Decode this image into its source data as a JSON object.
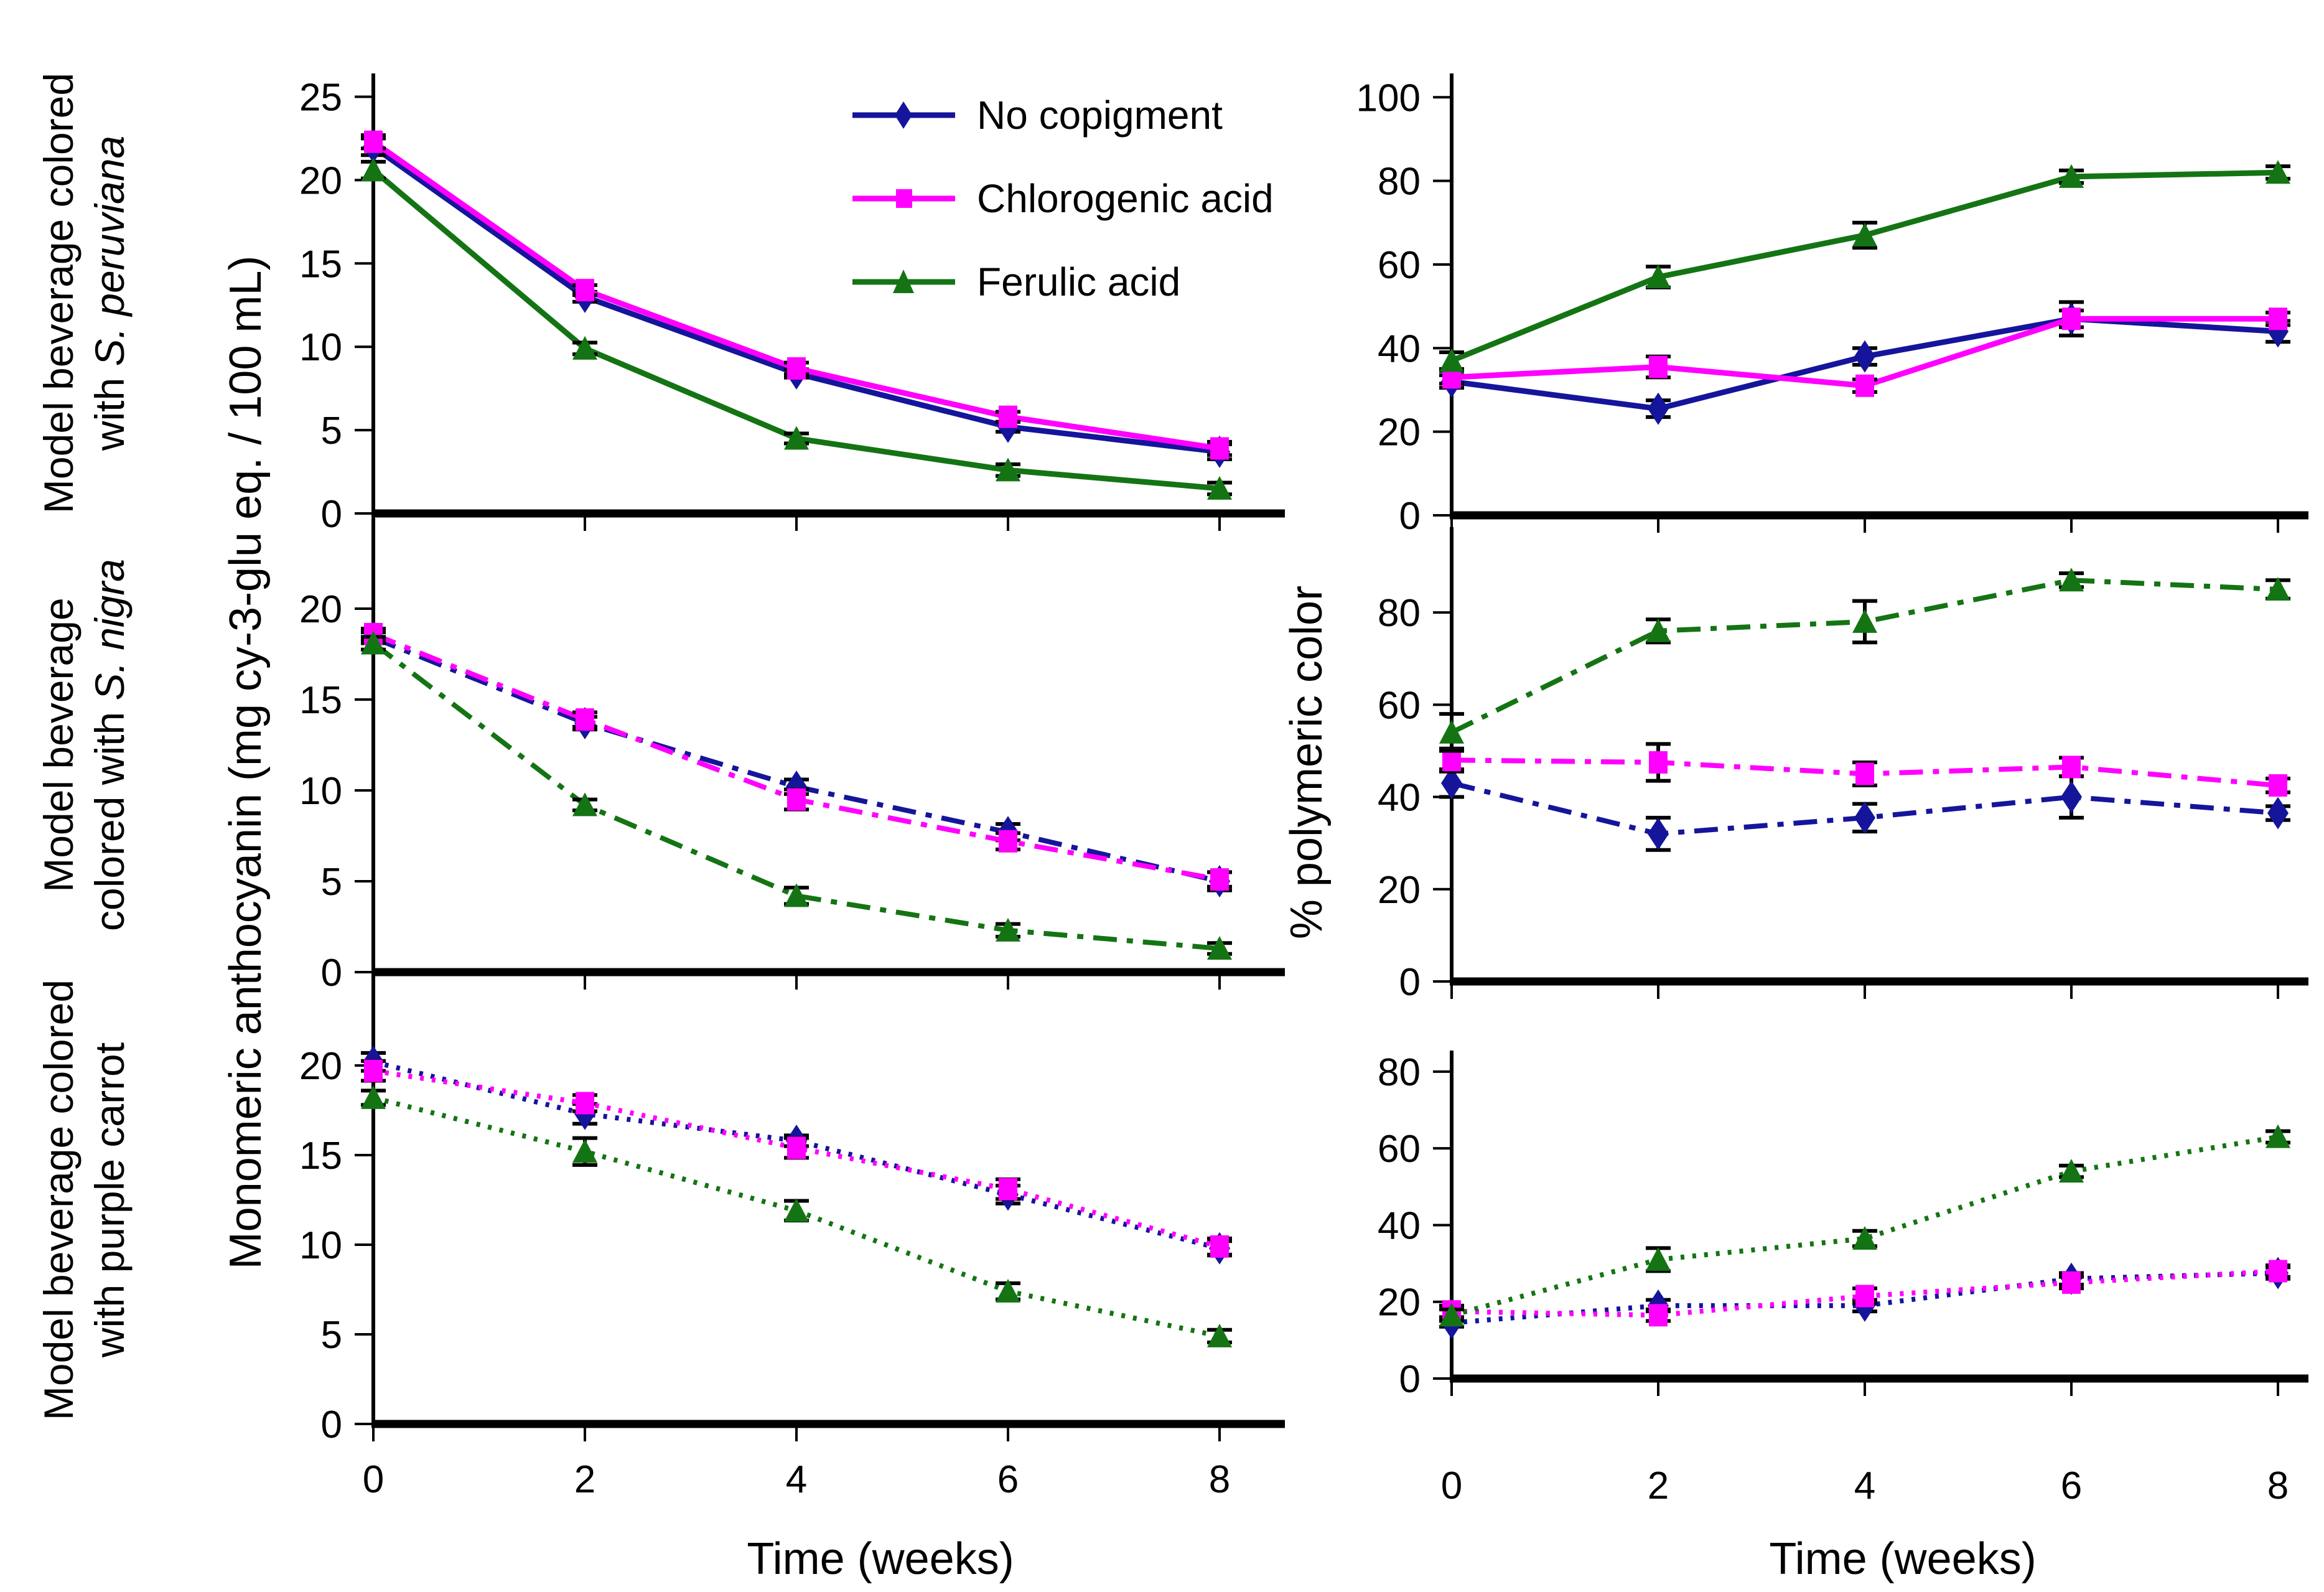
{
  "figure": {
    "row_labels": [
      {
        "line1": "Model beverage colored",
        "line2_normal": "with ",
        "line2_italic": "S. peruviana"
      },
      {
        "line1": "Model beverage",
        "line2_normal": "colored with ",
        "line2_italic": "S. nigra"
      },
      {
        "line1": "Model beverage colored",
        "line2_normal": "with purple carrot",
        "line2_italic": ""
      }
    ],
    "ylabel_left": "Monomeric anthocyanin (mg cy-3-glu eq. / 100 mL)",
    "ylabel_right": "% polymeric color",
    "xlabel_left": "Time (weeks)",
    "xlabel_right": "Time (weeks)",
    "legend": {
      "items": [
        "No copigment",
        "Chlorogenic acid",
        "Ferulic acid"
      ]
    }
  },
  "chart_data": {
    "type": "line",
    "x": [
      0,
      2,
      4,
      6,
      8
    ],
    "x_ticks": [
      0,
      2,
      4,
      6,
      8
    ],
    "xlabel": "Time (weeks)",
    "legend_position": "top-left panel, inside",
    "grid": false,
    "series_meta": [
      {
        "name": "No copigment",
        "color": "#15159B",
        "marker": "diamond"
      },
      {
        "name": "Chlorogenic acid",
        "color": "#FF00FF",
        "marker": "square"
      },
      {
        "name": "Ferulic acid",
        "color": "#147414",
        "marker": "triangle"
      }
    ],
    "panels": [
      {
        "id": "peruviana-monomeric",
        "col": "left",
        "row": 0,
        "linestyle": "solid",
        "ylabel": "Monomeric anthocyanin (mg cy-3-glu eq. / 100 mL)",
        "ylim": [
          0,
          26.4
        ],
        "yticks": [
          0,
          5,
          10,
          15,
          20,
          25
        ],
        "show_xticklabels": false,
        "series": [
          {
            "name": "No copigment",
            "values": [
              22.0,
              13.0,
              8.4,
              5.2,
              3.7
            ],
            "errors": [
              0.5,
              0.3,
              0.25,
              0.3,
              0.45
            ]
          },
          {
            "name": "Chlorogenic acid",
            "values": [
              22.3,
              13.4,
              8.7,
              5.8,
              3.9
            ],
            "errors": [
              0.4,
              0.3,
              0.35,
              0.3,
              0.4
            ]
          },
          {
            "name": "Ferulic acid",
            "values": [
              20.6,
              9.9,
              4.5,
              2.6,
              1.5
            ],
            "errors": [
              0.5,
              0.35,
              0.3,
              0.35,
              0.35
            ]
          }
        ]
      },
      {
        "id": "nigra-monomeric",
        "col": "left",
        "row": 1,
        "linestyle": "dashdot",
        "ylabel": "Monomeric anthocyanin (mg cy-3-glu eq. / 100 mL)",
        "ylim": [
          0,
          25
        ],
        "yticks": [
          0,
          5,
          10,
          15,
          20
        ],
        "show_xticklabels": false,
        "series": [
          {
            "name": "No copigment",
            "values": [
              18.4,
              13.7,
              10.2,
              7.7,
              5.0
            ],
            "errors": [
              0.3,
              0.35,
              0.4,
              0.45,
              0.5
            ]
          },
          {
            "name": "Chlorogenic acid",
            "values": [
              18.6,
              13.9,
              9.5,
              7.2,
              5.1
            ],
            "errors": [
              0.3,
              0.4,
              0.55,
              0.45,
              0.4
            ]
          },
          {
            "name": "Ferulic acid",
            "values": [
              18.1,
              9.2,
              4.2,
              2.3,
              1.3
            ],
            "errors": [
              0.35,
              0.3,
              0.45,
              0.35,
              0.3
            ]
          }
        ]
      },
      {
        "id": "carrot-monomeric",
        "col": "left",
        "row": 2,
        "linestyle": "dotted",
        "ylabel": "Monomeric anthocyanin (mg cy-3-glu eq. / 100 mL)",
        "ylim": [
          0,
          25
        ],
        "yticks": [
          0,
          5,
          10,
          15,
          20
        ],
        "show_xticklabels": true,
        "series": [
          {
            "name": "No copigment",
            "values": [
              20.2,
              17.3,
              15.8,
              12.8,
              9.8
            ],
            "errors": [
              0.5,
              0.55,
              0.3,
              0.5,
              0.4
            ]
          },
          {
            "name": "Chlorogenic acid",
            "values": [
              19.7,
              17.9,
              15.4,
              13.1,
              9.9
            ],
            "errors": [
              0.55,
              0.45,
              0.55,
              0.55,
              0.45
            ]
          },
          {
            "name": "Ferulic acid",
            "values": [
              18.2,
              15.2,
              11.9,
              7.4,
              4.9
            ],
            "errors": [
              0.4,
              0.75,
              0.55,
              0.45,
              0.35
            ]
          }
        ]
      },
      {
        "id": "peruviana-polymeric",
        "col": "right",
        "row": 0,
        "linestyle": "solid",
        "ylabel": "% polymeric color",
        "ylim": [
          0,
          105.7
        ],
        "yticks": [
          0,
          20,
          40,
          60,
          80,
          100
        ],
        "show_xticklabels": false,
        "series": [
          {
            "name": "No copigment",
            "values": [
              32,
              25.5,
              38,
              47,
              44
            ],
            "errors": [
              1.5,
              2,
              2,
              4,
              2.5
            ]
          },
          {
            "name": "Chlorogenic acid",
            "values": [
              33,
              35.5,
              31,
              47,
              47
            ],
            "errors": [
              1.5,
              2.5,
              1.5,
              2,
              1.5
            ]
          },
          {
            "name": "Ferulic acid",
            "values": [
              37,
              57,
              67,
              81,
              82
            ],
            "errors": [
              2,
              2.5,
              3,
              1.5,
              1.5
            ]
          }
        ]
      },
      {
        "id": "nigra-polymeric",
        "col": "right",
        "row": 1,
        "linestyle": "dashdot",
        "ylabel": "% polymeric color",
        "ylim": [
          0,
          98.5
        ],
        "yticks": [
          0,
          20,
          40,
          60,
          80
        ],
        "show_xticklabels": false,
        "series": [
          {
            "name": "No copigment",
            "values": [
              43,
              32,
              35.5,
              40,
              36.5
            ],
            "errors": [
              3,
              3.5,
              3,
              4.5,
              1.5
            ]
          },
          {
            "name": "Chlorogenic acid",
            "values": [
              48,
              47.5,
              45,
              46.5,
              42.5
            ],
            "errors": [
              2.5,
              4,
              2.5,
              2,
              1.5
            ]
          },
          {
            "name": "Ferulic acid",
            "values": [
              54,
              76,
              78,
              87,
              85
            ],
            "errors": [
              4,
              2.5,
              4.5,
              1.5,
              2
            ]
          }
        ]
      },
      {
        "id": "carrot-polymeric",
        "col": "right",
        "row": 2,
        "linestyle": "dotted",
        "ylabel": "% polymeric color",
        "ylim": [
          0,
          85.5
        ],
        "yticks": [
          0,
          20,
          40,
          60,
          80
        ],
        "show_xticklabels": true,
        "series": [
          {
            "name": "No copigment",
            "values": [
              14.5,
              19,
              19,
              26,
              27.5
            ],
            "errors": [
              1,
              1.5,
              1.5,
              1.5,
              1.5
            ]
          },
          {
            "name": "Chlorogenic acid",
            "values": [
              17.5,
              16.5,
              21.5,
              25,
              28
            ],
            "errors": [
              1.5,
              1.5,
              2,
              1.5,
              1.5
            ]
          },
          {
            "name": "Ferulic acid",
            "values": [
              16.5,
              31,
              36.5,
              54,
              63
            ],
            "errors": [
              1.5,
              3,
              2,
              1.5,
              1.5
            ]
          }
        ]
      }
    ]
  }
}
